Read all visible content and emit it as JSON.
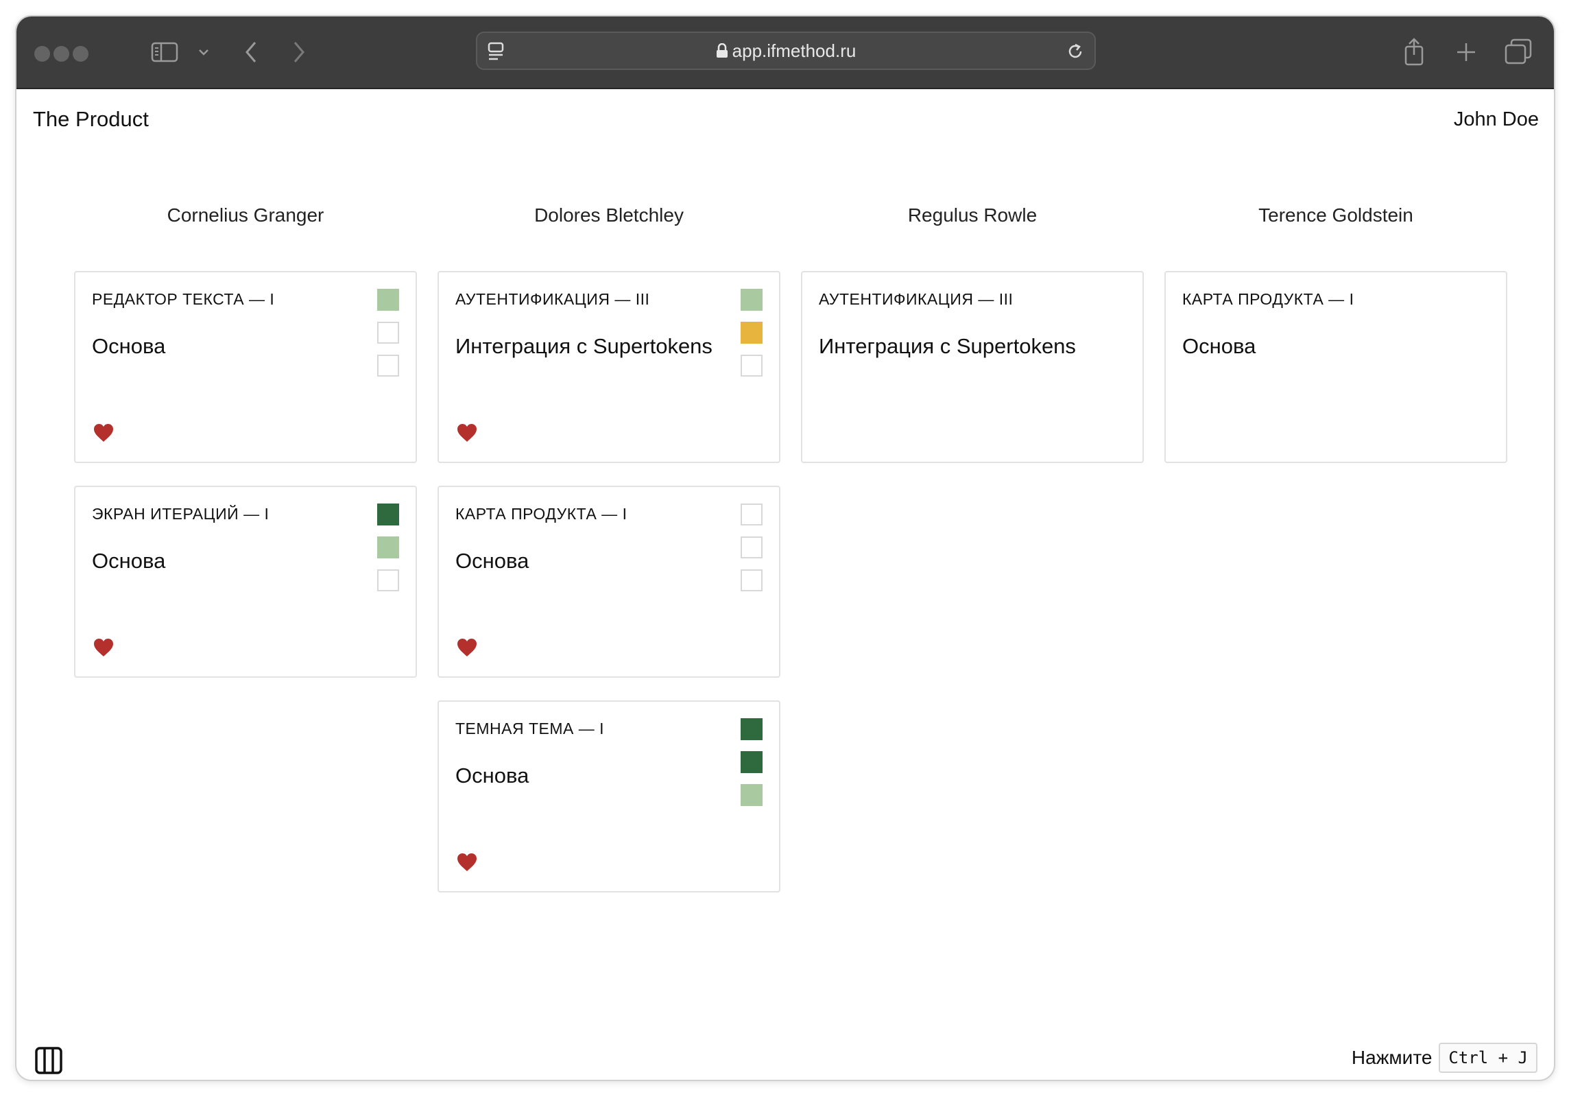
{
  "browser": {
    "url": "app.ifmethod.ru"
  },
  "app": {
    "title": "The Product",
    "user": "John Doe"
  },
  "colors": {
    "light_green": "#a9c9a0",
    "dark_green": "#2e6a3e",
    "yellow": "#e7b53e",
    "empty": "#ffffff",
    "heart": "#b3302c"
  },
  "columns": [
    {
      "name": "Cornelius Granger",
      "cards": [
        {
          "epic": "РЕДАКТОР ТЕКСТА — I",
          "title": "Основа",
          "squares": [
            "light",
            "empty",
            "empty"
          ],
          "liked": true
        },
        {
          "epic": "ЭКРАН ИТЕРАЦИЙ — I",
          "title": "Основа",
          "squares": [
            "dark",
            "light",
            "empty"
          ],
          "liked": true
        }
      ]
    },
    {
      "name": "Dolores Bletchley",
      "cards": [
        {
          "epic": "АУТЕНТИФИКАЦИЯ — III",
          "title": "Интеграция с Supertokens",
          "squares": [
            "light",
            "yellow",
            "empty"
          ],
          "liked": true
        },
        {
          "epic": "КАРТА ПРОДУКТА — I",
          "title": "Основа",
          "squares": [
            "empty",
            "empty",
            "empty"
          ],
          "liked": true
        },
        {
          "epic": "ТЕМНАЯ ТЕМА — I",
          "title": "Основа",
          "squares": [
            "dark",
            "dark",
            "light"
          ],
          "liked": true
        }
      ]
    },
    {
      "name": "Regulus Rowle",
      "cards": [
        {
          "epic": "АУТЕНТИФИКАЦИЯ — III",
          "title": "Интеграция с Supertokens",
          "squares": [],
          "liked": false
        }
      ]
    },
    {
      "name": "Terence Goldstein",
      "cards": [
        {
          "epic": "КАРТА ПРОДУКТА — I",
          "title": "Основа",
          "squares": [],
          "liked": false
        }
      ]
    }
  ],
  "footer": {
    "hint_text": "Нажмите",
    "shortcut": "Ctrl + J"
  }
}
